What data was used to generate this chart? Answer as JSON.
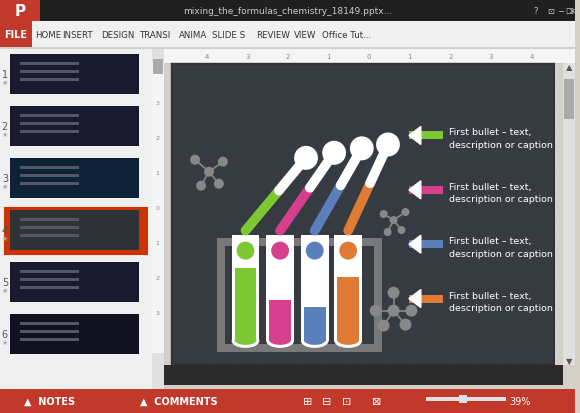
{
  "fig_w": 5.8,
  "fig_h": 4.14,
  "dpi": 100,
  "ui_bg": "#d4d0c8",
  "titlebar_bg": "#1e1e1e",
  "titlebar_text": "mixing_the_formulas_chemistry_18149.pptx...",
  "ribbon_bg": "#f0f0f0",
  "file_btn_color": "#c0392b",
  "ribbon_tabs": [
    "HOME",
    "INSERT",
    "DESIGN",
    "TRANSI",
    "ANIMA",
    "SLIDE S",
    "REVIEW",
    "VIEW",
    "Office Tut..."
  ],
  "slide_bg": "#2f3237",
  "slide_inner_bg": "#363b42",
  "grid_color": "#3d4248",
  "tube_colors": [
    "#7dc832",
    "#d63f8c",
    "#5b7fba",
    "#e07b35"
  ],
  "rack_color": "#787878",
  "bullet_colors": [
    "#7dc832",
    "#d63f8c",
    "#5b7fba",
    "#e07b35"
  ],
  "bullet_text": [
    "First bullet – text,\ndescription or caption",
    "First bullet – text,\ndescription or caption",
    "First bullet – text,\ndescription or caption",
    "First bullet – text,\ndescription or caption"
  ],
  "text_color": "#ffffff",
  "molecule_color": "#888888",
  "panel_sidebar_bg": "#f5f5f5",
  "panel_sidebar_active": "#cc3300",
  "ruler_bg": "#f0f0f0",
  "ruler_text": "#888888",
  "notes_bar_bg": "#cc3300",
  "notes_bar_text": "#ffffff",
  "statusbar_bg": "#cc3300"
}
